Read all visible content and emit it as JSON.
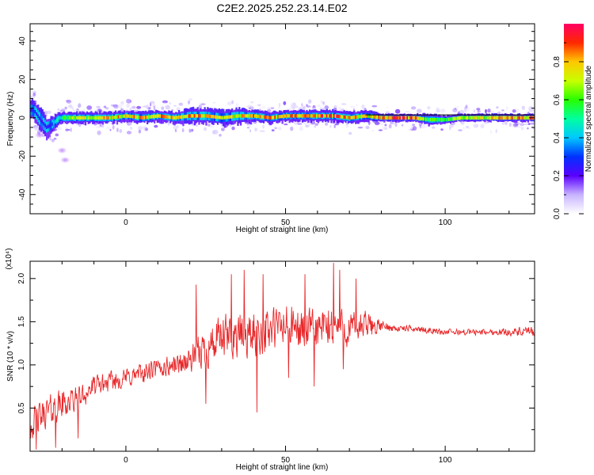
{
  "title": "C2E2.2025.252.23.14.E02",
  "colors": {
    "snr_line": "#e8282a",
    "frame": "#000000",
    "ridge_core": "#e8001c",
    "colorscale": [
      "#ffffff",
      "#c8b4ff",
      "#5a00ff",
      "#0032ff",
      "#00c8ff",
      "#00ffa0",
      "#28ff00",
      "#c8ff00",
      "#ffc800",
      "#ff2800",
      "#ff0064"
    ]
  },
  "chart_data": [
    {
      "type": "heatmap",
      "xlabel": "Height of straight line (km)",
      "ylabel": "Frequency (Hz)",
      "xlim": [
        -30,
        128
      ],
      "ylim": [
        -50,
        49
      ],
      "xticks": [
        0,
        50,
        100
      ],
      "yticks": [
        -40,
        -20,
        0,
        20,
        40
      ],
      "grid": false,
      "ridge": {
        "x": [
          -29,
          -27,
          -25,
          -23,
          -21,
          -19,
          -15,
          -10,
          -5,
          0,
          5,
          10,
          15,
          20,
          25,
          30,
          35,
          40,
          45,
          50,
          55,
          60,
          65,
          70,
          75,
          80,
          85,
          90,
          95,
          100,
          105,
          110,
          115,
          120,
          128
        ],
        "freq": [
          4,
          -1,
          -5,
          -3,
          0,
          0,
          0,
          0,
          0,
          1,
          0,
          1,
          0,
          1,
          1,
          0,
          1,
          1,
          0,
          1,
          1,
          1,
          1,
          0,
          1,
          0,
          0,
          0,
          -1,
          -1,
          0,
          0,
          0,
          0,
          0
        ],
        "halfwidth": [
          5,
          6,
          5,
          4,
          3,
          3,
          3,
          3,
          3,
          3,
          3,
          3,
          3,
          4,
          4,
          4,
          4,
          3,
          3,
          3,
          3,
          3,
          3,
          3,
          3,
          2,
          2,
          2,
          3,
          2,
          2,
          2,
          2,
          2,
          2
        ],
        "amplitude": [
          0.3,
          0.25,
          0.3,
          0.4,
          0.5,
          0.6,
          0.7,
          0.75,
          0.8,
          0.85,
          0.8,
          0.85,
          0.8,
          0.85,
          0.8,
          0.75,
          0.8,
          0.85,
          0.85,
          0.85,
          0.85,
          0.9,
          0.9,
          0.85,
          0.8,
          0.85,
          0.9,
          0.95,
          0.6,
          0.6,
          0.7,
          0.75,
          0.8,
          0.85,
          0.9
        ]
      },
      "colorbar": {
        "label": "Normalized spectral amplitude",
        "range": [
          0,
          1
        ],
        "ticks": [
          "0.0",
          "0.2",
          "0.4",
          "0.6",
          "0.8"
        ]
      }
    },
    {
      "type": "line",
      "xlabel": "Height of straight line (km)",
      "ylabel": "SNR (10 * v/v)",
      "scale_label": "(x10⁴)",
      "xlim": [
        -30,
        128
      ],
      "ylim": [
        0,
        2.2
      ],
      "xticks": [
        0,
        50,
        100
      ],
      "yticks": [
        "0.5",
        "1.0",
        "1.5",
        "2.0"
      ],
      "grid": false,
      "series": [
        {
          "x": [
            -30,
            -25,
            -20,
            -15,
            -10,
            -5,
            0,
            5,
            10,
            15,
            20,
            25,
            30,
            35,
            40,
            45,
            50,
            55,
            60,
            65,
            70,
            75,
            80,
            85,
            90,
            95,
            100,
            105,
            110,
            115,
            120,
            125,
            128
          ],
          "mean": [
            0.3,
            0.45,
            0.55,
            0.6,
            0.75,
            0.8,
            0.85,
            0.9,
            0.95,
            1.0,
            1.05,
            1.2,
            1.3,
            1.35,
            1.35,
            1.4,
            1.45,
            1.4,
            1.4,
            1.45,
            1.4,
            1.45,
            1.45,
            1.42,
            1.42,
            1.4,
            1.38,
            1.38,
            1.38,
            1.38,
            1.38,
            1.38,
            1.38
          ],
          "spread": [
            0.3,
            0.3,
            0.3,
            0.25,
            0.2,
            0.2,
            0.2,
            0.2,
            0.2,
            0.2,
            0.25,
            0.4,
            0.45,
            0.45,
            0.45,
            0.45,
            0.45,
            0.4,
            0.4,
            0.45,
            0.35,
            0.3,
            0.1,
            0.06,
            0.06,
            0.06,
            0.06,
            0.06,
            0.06,
            0.06,
            0.08,
            0.1,
            0.1
          ],
          "peak_x": [
            22,
            25,
            33,
            37,
            43,
            56,
            65,
            67,
            72
          ],
          "peak_y": [
            1.93,
            1.95,
            2.05,
            2.1,
            2.05,
            2.05,
            2.18,
            2.1,
            2.0
          ],
          "trough_x": [
            -28,
            -22,
            -15,
            25,
            41,
            51,
            59,
            68
          ],
          "trough_y": [
            0.02,
            0.04,
            0.15,
            0.55,
            0.45,
            0.85,
            0.75,
            0.95
          ]
        }
      ]
    }
  ]
}
